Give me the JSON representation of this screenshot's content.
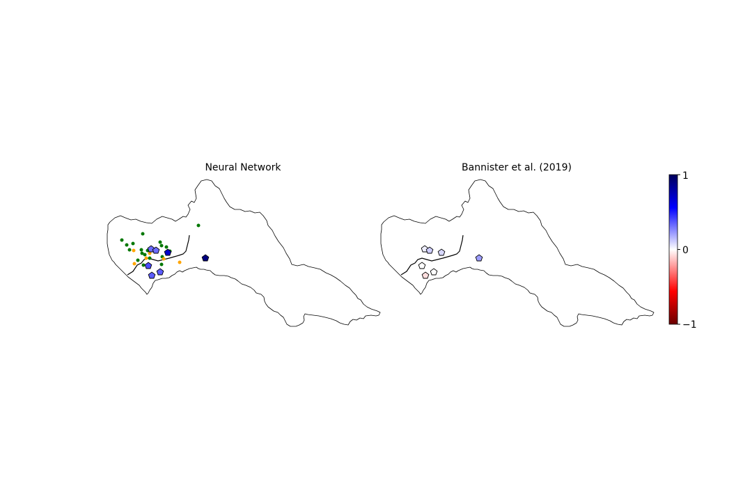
{
  "panels": [
    {
      "title": "Neural Network",
      "green_points": 19,
      "orange_points": 6,
      "stations": [
        0.45,
        0.45,
        0.85,
        0.55,
        0.5,
        0.5,
        0.95
      ]
    },
    {
      "title": "Bannister et al. (2019)",
      "stations": [
        0.05,
        0.15,
        0.12,
        0.0,
        0.0,
        -0.1,
        0.3
      ]
    }
  ],
  "colorbar": {
    "min": -1,
    "max": 1,
    "ticks": [
      "1",
      "0",
      "−1"
    ],
    "colors": [
      "#00005a",
      "#0000ff",
      "#ffffff",
      "#ff0000",
      "#6a0000"
    ]
  },
  "colors": {
    "green": "#007700",
    "orange": "#ffa500",
    "outline": "#000000"
  }
}
